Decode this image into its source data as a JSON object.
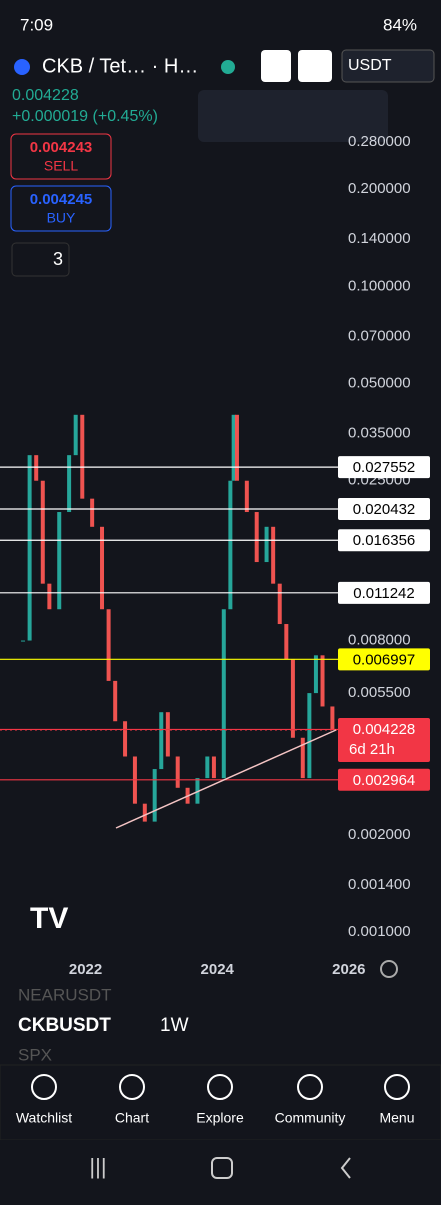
{
  "status_bar": {
    "time": "7:09",
    "battery": "84%"
  },
  "header": {
    "symbol": "CKB / Tet… · H…",
    "currency": "USDT"
  },
  "price": {
    "last": "0.004228",
    "change": "+0.000019 (+0.45%)"
  },
  "orders": {
    "sell_price": "0.004243",
    "sell": "SELL",
    "buy_price": "0.004245",
    "buy": "BUY",
    "indicators": "3"
  },
  "chart_data": {
    "type": "candlestick",
    "log_scale": true,
    "x": [
      2021.05,
      2021.15,
      2021.25,
      2021.35,
      2021.45,
      2021.6,
      2021.75,
      2021.85,
      2021.95,
      2022.1,
      2022.25,
      2022.35,
      2022.45,
      2022.6,
      2022.75,
      2022.9,
      2023.05,
      2023.15,
      2023.25,
      2023.4,
      2023.55,
      2023.7,
      2023.85,
      2023.95,
      2024.1,
      2024.2,
      2024.25,
      2024.3,
      2024.45,
      2024.6,
      2024.75,
      2024.85,
      2024.95,
      2025.05,
      2025.15,
      2025.3,
      2025.4,
      2025.5,
      2025.6,
      2025.75
    ],
    "values": [
      0.008,
      0.03,
      0.025,
      0.012,
      0.01,
      0.02,
      0.03,
      0.04,
      0.022,
      0.018,
      0.01,
      0.006,
      0.0045,
      0.0035,
      0.0025,
      0.0022,
      0.0032,
      0.0048,
      0.0035,
      0.0028,
      0.0025,
      0.003,
      0.0035,
      0.003,
      0.01,
      0.025,
      0.04,
      0.025,
      0.02,
      0.014,
      0.018,
      0.012,
      0.009,
      0.007,
      0.004,
      0.003,
      0.0055,
      0.0072,
      0.005,
      0.004228
    ],
    "up_color": "#26a69a",
    "down_color": "#ef5350",
    "xlim": [
      2020.7,
      2027.4
    ],
    "xticks": [
      2022,
      2024,
      2026
    ],
    "ylim": [
      0.00085,
      0.42
    ],
    "yticks": [
      {
        "value": 0.28,
        "label": "0.280000"
      },
      {
        "value": 0.2,
        "label": "0.200000"
      },
      {
        "value": 0.14,
        "label": "0.140000"
      },
      {
        "value": 0.1,
        "label": "0.100000"
      },
      {
        "value": 0.07,
        "label": "0.070000"
      },
      {
        "value": 0.05,
        "label": "0.050000"
      },
      {
        "value": 0.035,
        "label": "0.035000"
      },
      {
        "value": 0.025,
        "label": "0.025000"
      },
      {
        "value": 0.008,
        "label": "0.008000"
      },
      {
        "value": 0.0055,
        "label": "0.005500"
      },
      {
        "value": 0.002,
        "label": "0.002000"
      },
      {
        "value": 0.0014,
        "label": "0.001400"
      },
      {
        "value": 0.001,
        "label": "0.001000"
      }
    ],
    "levels": [
      {
        "value": 0.027552,
        "color": "#ffffff"
      },
      {
        "value": 0.020432,
        "color": "#ffffff"
      },
      {
        "value": 0.016356,
        "color": "#ffffff"
      },
      {
        "value": 0.011242,
        "color": "#ffffff"
      },
      {
        "value": 0.006997,
        "color": "#ffff00"
      },
      {
        "value": 0.004244,
        "color": "#f23645"
      },
      {
        "value": 0.002964,
        "color": "#f23645"
      }
    ],
    "last_price": {
      "value": 0.004228,
      "countdown": "6d 21h",
      "color": "#f23645"
    }
  },
  "watchlist": {
    "prev": "NEARUSDT",
    "symbol": "CKBUSDT",
    "interval": "1W",
    "next": "SPX"
  },
  "nav": [
    "Watchlist",
    "Chart",
    "Explore",
    "Community",
    "Menu"
  ]
}
